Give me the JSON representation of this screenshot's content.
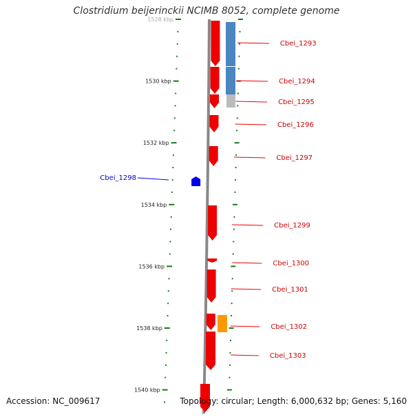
{
  "header": {
    "title": "Clostridium beijerinckii NCIMB 8052, complete genome"
  },
  "footer": {
    "accession": "Accession: NC_009617",
    "summary": "Topology: circular; Length: 6,000,632 bp; Genes: 5,160"
  },
  "colors": {
    "forward_gene": "#ee0000",
    "reverse_gene": "#0000ee",
    "backbone": "#888888",
    "tick": "#1a7a1a",
    "steel_feature": "#4a86c0",
    "grey_feature": "#bbbbbb",
    "orange_feature": "#ff9900",
    "forward_label": "#cc0000",
    "reverse_label": "#0000cc"
  },
  "scale": {
    "start_kbp": 1528,
    "end_kbp": 1540,
    "labels": [
      "1528 kbp",
      "1530 kbp",
      "1532 kbp",
      "1534 kbp",
      "1536 kbp",
      "1538 kbp",
      "1540 kbp"
    ]
  },
  "genes": [
    {
      "name": "Cbei_1293",
      "strand": "forward"
    },
    {
      "name": "Cbei_1294",
      "strand": "forward"
    },
    {
      "name": "Cbei_1295",
      "strand": "forward"
    },
    {
      "name": "Cbei_1296",
      "strand": "forward"
    },
    {
      "name": "Cbei_1297",
      "strand": "forward"
    },
    {
      "name": "Cbei_1298",
      "strand": "reverse"
    },
    {
      "name": "Cbei_1299",
      "strand": "forward"
    },
    {
      "name": "Cbei_1300",
      "strand": "forward"
    },
    {
      "name": "Cbei_1301",
      "strand": "forward"
    },
    {
      "name": "Cbei_1302",
      "strand": "forward"
    },
    {
      "name": "Cbei_1303",
      "strand": "forward"
    }
  ]
}
